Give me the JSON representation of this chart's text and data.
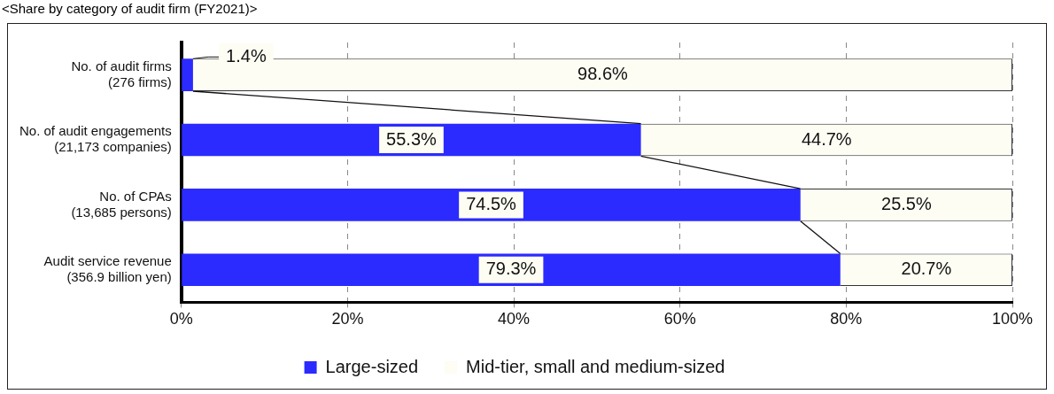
{
  "chart_data": {
    "type": "bar",
    "orientation": "horizontal",
    "stacked": true,
    "title": "<Share by category of audit firm (FY2021)>",
    "categories": [
      "No. of audit firms\n(276 firms)",
      "No. of audit engagements\n(21,173 companies)",
      "No. of CPAs\n(13,685 persons)",
      "Audit service revenue\n(356.9 billion yen)"
    ],
    "series": [
      {
        "name": "Large-sized",
        "color": "#2b2bff",
        "values": [
          1.4,
          55.3,
          74.5,
          79.3
        ],
        "value_labels": [
          "1.4%",
          "55.3%",
          "74.5%",
          "79.3%"
        ]
      },
      {
        "name": "Mid-tier, small and medium-sized",
        "color": "#fdfdf3",
        "values": [
          98.6,
          44.7,
          25.5,
          20.7
        ],
        "value_labels": [
          "98.6%",
          "44.7%",
          "25.5%",
          "20.7%"
        ]
      }
    ],
    "xlim": [
      0,
      100
    ],
    "xticks": [
      {
        "value": 0,
        "label": "0%"
      },
      {
        "value": 20,
        "label": "20%"
      },
      {
        "value": 40,
        "label": "40%"
      },
      {
        "value": 60,
        "label": "60%"
      },
      {
        "value": 80,
        "label": "80%"
      },
      {
        "value": 100,
        "label": "100%"
      }
    ],
    "grid": "x",
    "legend": "bottom"
  }
}
